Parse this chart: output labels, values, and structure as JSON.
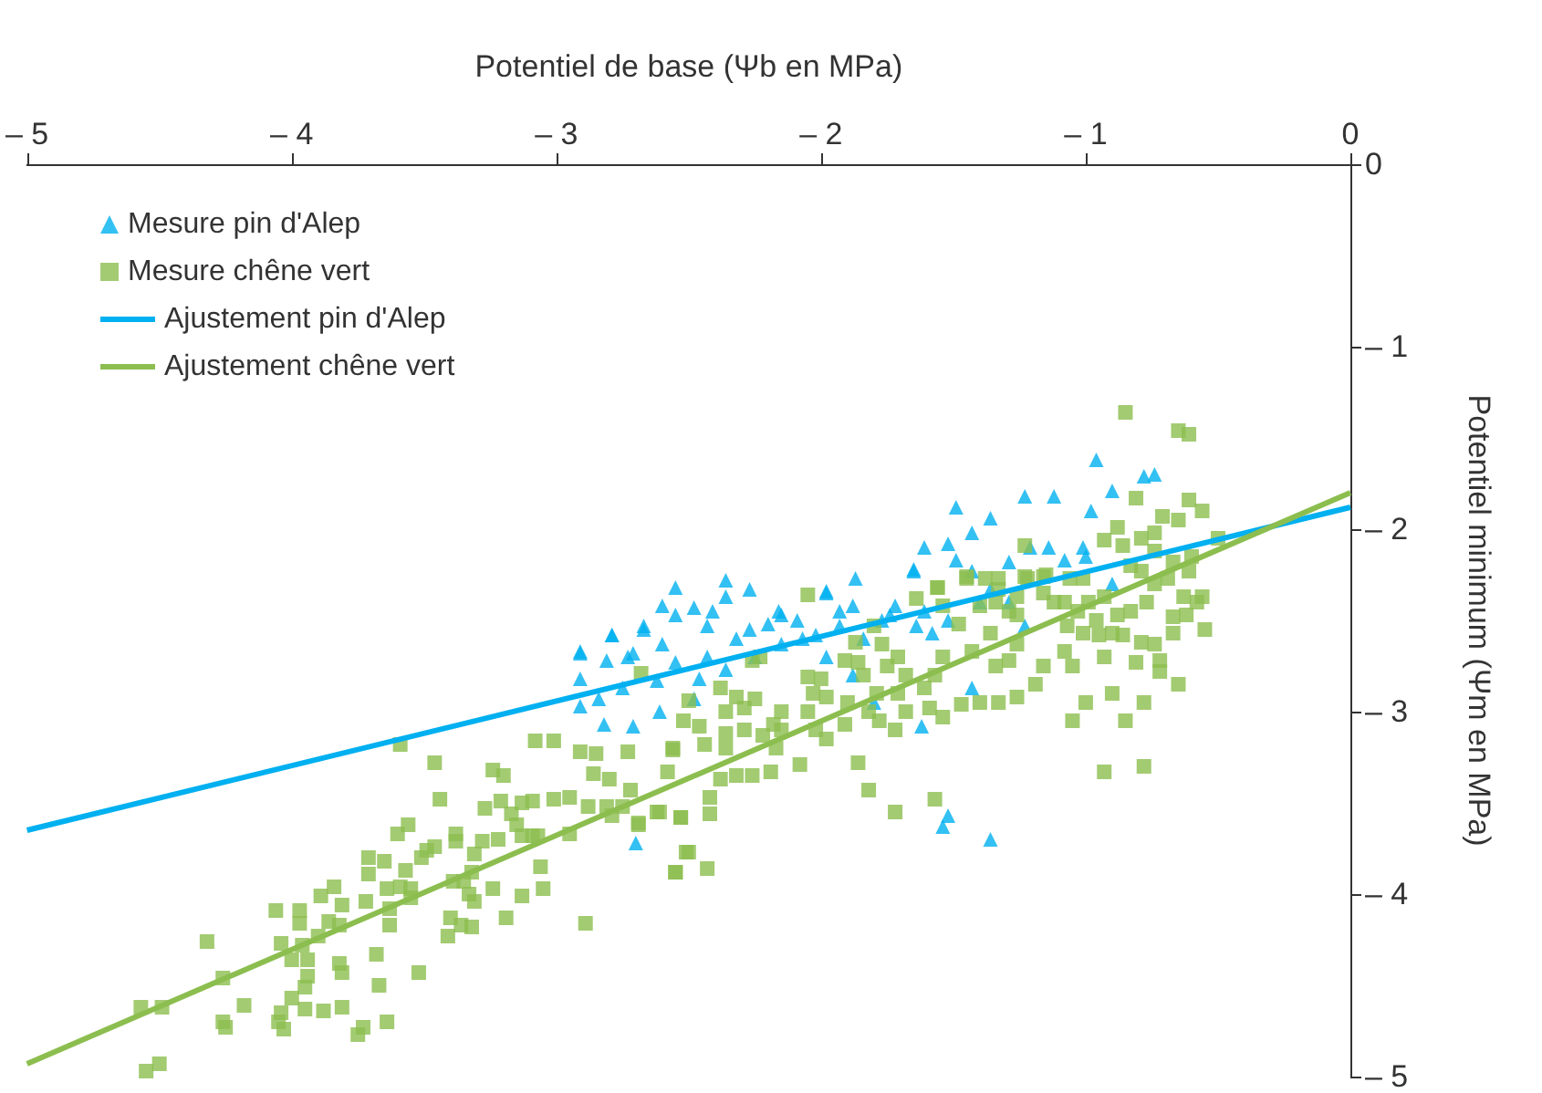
{
  "chart_data": {
    "type": "scatter",
    "xlabel": "Potentiel de base (Ψb en MPa)",
    "ylabel": "Potentiel minimum (Ψm en MPa)",
    "xlim": [
      -5,
      0
    ],
    "ylim": [
      -5,
      0
    ],
    "xticks": [
      {
        "value": -5,
        "label": "– 5"
      },
      {
        "value": -4,
        "label": "– 4"
      },
      {
        "value": -3,
        "label": "– 3"
      },
      {
        "value": -2,
        "label": "– 2"
      },
      {
        "value": -1,
        "label": "– 1"
      },
      0
    ],
    "yticks": [
      0,
      {
        "value": -1,
        "label": "– 1"
      },
      {
        "value": -2,
        "label": "– 2"
      },
      {
        "value": -3,
        "label": "– 3"
      },
      {
        "value": -4,
        "label": "– 4"
      },
      {
        "value": -5,
        "label": "– 5"
      }
    ],
    "grid": false,
    "legend": "top left",
    "series": [
      {
        "name": "Mesure pin d'Alep",
        "marker": "triangle",
        "color": "#00b0f0",
        "x": [
          -2.55,
          -2.27,
          -1.98,
          -2.91,
          -2.91,
          -2.81,
          -2.79,
          -2.67,
          -2.6,
          -2.48,
          -2.36,
          -2.43,
          -2.6,
          -2.71,
          -2.55,
          -2.43,
          -2.32,
          -2.2,
          -2.16,
          -2.09,
          -2.07,
          -2.15,
          -2.25,
          -2.36,
          -2.46,
          -2.62,
          -2.75,
          -2.84,
          -2.82,
          -2.71,
          -2.61,
          -2.48,
          -2.91,
          -1.88,
          -1.93,
          -1.84,
          -1.98,
          -1.88,
          -1.8,
          -1.74,
          -1.65,
          -1.64,
          -1.58,
          -1.49,
          -1.43,
          -1.29,
          -1.36,
          -1.23,
          -1.43,
          -1.62,
          -1.52,
          -1.54,
          -1.36,
          -2.7,
          -2.36,
          -1.98,
          -1.87,
          -1.65,
          -1.61,
          -1.52,
          -1.49,
          -1.43,
          -1.36,
          -1.23,
          -1.12,
          -1.21,
          -1.14,
          -1.08,
          -1.0,
          -0.98,
          -0.96,
          -0.9,
          -0.78,
          -0.74,
          -1.29,
          -1.4,
          -1.52,
          -1.61,
          -1.72,
          -1.77,
          -1.93,
          -2.02,
          -2.15,
          -2.27,
          -2.41,
          -2.55,
          -2.67,
          -2.79,
          -2.91,
          -2.73,
          -1.01,
          -0.9
        ],
        "values": [
          -2.32,
          -2.33,
          -2.34,
          -2.68,
          -2.82,
          -2.72,
          -2.58,
          -2.53,
          -2.42,
          -2.43,
          -2.37,
          -2.53,
          -2.63,
          -2.68,
          -2.73,
          -2.7,
          -2.6,
          -2.52,
          -2.45,
          -2.5,
          -2.6,
          -2.63,
          -2.7,
          -2.77,
          -2.82,
          -2.83,
          -2.87,
          -2.93,
          -3.07,
          -3.08,
          -3.0,
          -2.93,
          -2.97,
          -2.42,
          -2.53,
          -2.6,
          -2.7,
          -2.8,
          -2.95,
          -2.47,
          -2.23,
          -2.53,
          -2.57,
          -2.17,
          -2.23,
          -2.18,
          -2.33,
          -2.53,
          -2.87,
          -3.08,
          -3.57,
          -3.63,
          -3.7,
          -3.72,
          -2.28,
          -2.35,
          -2.27,
          -2.22,
          -2.1,
          -2.08,
          -1.88,
          -2.02,
          -1.94,
          -1.82,
          -1.82,
          -2.1,
          -2.1,
          -2.17,
          -2.15,
          -1.9,
          -1.62,
          -1.79,
          -1.71,
          -1.7,
          -2.4,
          -2.4,
          -2.5,
          -2.45,
          -2.42,
          -2.5,
          -2.45,
          -2.58,
          -2.47,
          -2.55,
          -2.45,
          -2.47,
          -2.55,
          -2.58,
          -2.67,
          -2.7,
          -2.1,
          -2.3
        ]
      },
      {
        "name": "Mesure chêne vert",
        "marker": "square",
        "color": "#8cbe4f",
        "x": [
          -4.57,
          -4.49,
          -4.55,
          -4.5,
          -4.32,
          -4.26,
          -4.26,
          -4.25,
          -4.18,
          -4.06,
          -3.97,
          -3.97,
          -4.04,
          -4.0,
          -4.05,
          -4.03,
          -4.04,
          -3.95,
          -3.88,
          -3.81,
          -3.96,
          -3.94,
          -3.9,
          -3.94,
          -3.95,
          -4.0,
          -3.89,
          -3.84,
          -3.81,
          -3.86,
          -3.82,
          -3.82,
          -3.81,
          -3.72,
          -3.71,
          -3.65,
          -3.71,
          -3.64,
          -3.68,
          -3.67,
          -3.75,
          -3.73,
          -3.64,
          -3.63,
          -3.63,
          -3.57,
          -3.59,
          -3.55,
          -3.55,
          -3.6,
          -3.56,
          -3.51,
          -3.49,
          -3.46,
          -3.52,
          -3.44,
          -3.46,
          -3.59,
          -3.38,
          -3.38,
          -3.39,
          -3.35,
          -3.32,
          -3.33,
          -3.31,
          -3.4,
          -3.41,
          -3.36,
          -3.32,
          -3.31,
          -3.28,
          -3.22,
          -3.24,
          -3.19,
          -3.13,
          -3.27,
          -3.21,
          -3.24,
          -3.2,
          -3.17,
          -3.15,
          -3.13,
          -3.09,
          -3.13,
          -3.09,
          -3.07,
          -3.08,
          -3.01,
          -3.06,
          -3.05,
          -3.01,
          -2.95,
          -2.95,
          -2.89,
          -2.91,
          -2.85,
          -2.86,
          -2.8,
          -2.73,
          -2.88,
          -2.81,
          -2.75,
          -2.79,
          -2.69,
          -2.62,
          -2.53,
          -2.55,
          -2.51,
          -2.58,
          -2.56,
          -2.72,
          -2.05,
          -2.68,
          -2.5,
          -2.38,
          -2.32,
          -2.36,
          -2.29,
          -2.25,
          -2.23,
          -2.26,
          -2.18,
          -2.15,
          -2.22,
          -2.29,
          -2.36,
          -2.46,
          -2.44,
          -2.56,
          -2.52,
          -2.36,
          -2.17,
          -2.15,
          -2.05,
          -2.05,
          -2.0,
          -2.03,
          -1.98,
          -2.02,
          -1.98,
          -1.91,
          -1.9,
          -1.91,
          -1.86,
          -1.84,
          -1.87,
          -1.8,
          -1.77,
          -1.75,
          -1.71,
          -1.68,
          -1.71,
          -1.79,
          -1.82,
          -1.78,
          -1.72,
          -1.68,
          -1.61,
          -1.59,
          -1.54,
          -1.57,
          -1.54,
          -1.64,
          -1.56,
          -1.54,
          -1.45,
          -1.48,
          -1.43,
          -1.4,
          -1.36,
          -1.34,
          -1.29,
          -1.26,
          -1.33,
          -1.23,
          -1.16,
          -1.26,
          -1.4,
          -1.47,
          -1.33,
          -1.26,
          -1.19,
          -1.16,
          -1.86,
          -1.82,
          -1.72,
          -1.57,
          -2.08,
          -2.19,
          -2.26,
          -2.32,
          -2.38,
          -2.42,
          -2.42,
          -2.53,
          -2.5,
          -2.43,
          -2.55,
          -2.69,
          -2.61,
          -0.85,
          -0.65,
          -0.61,
          -0.81,
          -0.61,
          -0.56,
          -0.5,
          -0.65,
          -0.71,
          -0.74,
          -0.88,
          -0.93,
          -0.86,
          -0.79,
          -0.74,
          -0.6,
          -0.67,
          -0.61,
          -0.69,
          -0.74,
          -0.79,
          -0.83,
          -0.63,
          -0.56,
          -0.62,
          -0.67,
          -0.77,
          -0.83,
          -0.88,
          -0.93,
          -0.99,
          -0.96,
          -1.03,
          -1.08,
          -1.01,
          -1.06,
          -0.67,
          -0.74,
          -0.79,
          -0.86,
          -0.9,
          -0.95,
          -1.01,
          -1.07,
          -0.93,
          -0.81,
          -0.72,
          -0.72,
          -1.05,
          -1.08,
          -1.12,
          -1.16,
          -1.22,
          -1.23,
          -1.15,
          -1.26,
          -1.29,
          -1.34,
          -1.38,
          -1.33,
          -1.45,
          -1.56,
          -1.05,
          -1.0,
          -0.9,
          -0.78,
          -0.85,
          -0.93,
          -0.78,
          -0.65,
          -0.58,
          -0.55
        ],
        "values": [
          -4.62,
          -4.62,
          -4.97,
          -4.93,
          -4.26,
          -4.46,
          -4.7,
          -4.73,
          -4.61,
          -4.09,
          -4.09,
          -4.16,
          -4.27,
          -4.36,
          -4.7,
          -4.74,
          -4.65,
          -4.63,
          -4.64,
          -4.62,
          -4.28,
          -4.36,
          -4.23,
          -4.45,
          -4.51,
          -4.57,
          -4.01,
          -3.96,
          -4.06,
          -4.15,
          -4.17,
          -4.38,
          -4.43,
          -4.04,
          -3.8,
          -3.82,
          -3.89,
          -3.97,
          -4.33,
          -4.5,
          -4.77,
          -4.73,
          -4.7,
          -4.08,
          -4.17,
          -3.87,
          -3.96,
          -3.97,
          -4.02,
          -3.67,
          -3.62,
          -3.8,
          -3.76,
          -3.74,
          -4.43,
          -3.48,
          -3.28,
          -3.18,
          -3.67,
          -3.71,
          -3.93,
          -3.93,
          -3.88,
          -4.0,
          -4.04,
          -4.13,
          -4.23,
          -4.17,
          -4.18,
          -3.78,
          -3.71,
          -3.7,
          -3.97,
          -4.13,
          -4.01,
          -3.53,
          -3.49,
          -3.32,
          -3.35,
          -3.56,
          -3.62,
          -3.5,
          -3.49,
          -3.68,
          -3.68,
          -3.68,
          -3.16,
          -3.16,
          -3.85,
          -3.97,
          -3.48,
          -3.47,
          -3.67,
          -4.16,
          -3.22,
          -3.23,
          -3.34,
          -3.37,
          -3.22,
          -3.52,
          -3.52,
          -3.52,
          -3.57,
          -3.61,
          -3.55,
          -3.58,
          -3.88,
          -3.77,
          -3.33,
          -3.21,
          -3.43,
          -2.36,
          -2.79,
          -2.94,
          -2.87,
          -2.92,
          -3.0,
          -2.98,
          -2.93,
          -2.7,
          -2.72,
          -3.07,
          -3.1,
          -3.13,
          -3.1,
          -3.2,
          -3.08,
          -3.18,
          -3.2,
          -3.05,
          -3.12,
          -3.2,
          -3.0,
          -3.0,
          -2.81,
          -2.82,
          -2.9,
          -2.92,
          -3.1,
          -3.15,
          -3.07,
          -2.95,
          -2.72,
          -2.73,
          -2.8,
          -2.62,
          -2.53,
          -2.63,
          -2.75,
          -2.7,
          -2.8,
          -2.9,
          -2.9,
          -3.0,
          -3.05,
          -3.1,
          -3.0,
          -2.87,
          -2.98,
          -3.03,
          -2.8,
          -2.7,
          -2.38,
          -2.32,
          -2.42,
          -2.26,
          -2.52,
          -2.67,
          -2.42,
          -2.57,
          -2.75,
          -2.72,
          -2.63,
          -2.33,
          -2.26,
          -2.26,
          -2.47,
          -2.95,
          -2.96,
          -2.95,
          -2.92,
          -2.85,
          -2.75,
          -3.28,
          -3.43,
          -3.55,
          -3.48,
          -3.29,
          -3.33,
          -3.35,
          -3.35,
          -3.37,
          -3.47,
          -3.56,
          -3.58,
          -3.77,
          -3.86,
          -3.88,
          -3.62,
          -3.55,
          -1.36,
          -1.46,
          -1.48,
          -1.83,
          -1.84,
          -1.9,
          -2.05,
          -1.95,
          -1.93,
          -2.02,
          -1.99,
          -2.06,
          -2.09,
          -2.05,
          -2.12,
          -2.15,
          -2.18,
          -2.23,
          -2.27,
          -2.3,
          -2.23,
          -2.2,
          -2.37,
          -2.37,
          -2.47,
          -2.48,
          -2.4,
          -2.45,
          -2.47,
          -2.37,
          -2.4,
          -2.5,
          -2.45,
          -2.4,
          -2.27,
          -2.27,
          -2.57,
          -2.63,
          -2.62,
          -2.58,
          -2.57,
          -2.58,
          -2.57,
          -2.53,
          -2.7,
          -2.73,
          -2.72,
          -2.78,
          -2.75,
          -2.67,
          -2.4,
          -2.35,
          -2.27,
          -2.09,
          -2.25,
          -2.37,
          -2.45,
          -2.4,
          -2.27,
          -2.27,
          -2.27,
          -2.32,
          -3.05,
          -2.95,
          -2.9,
          -2.95,
          -3.05,
          -3.33,
          -3.3,
          -2.85,
          -2.4,
          -2.55
        ]
      },
      {
        "name": "Ajustement pin d'Alep",
        "type": "line",
        "marker": "none",
        "color": "#00b0f0",
        "x": [
          -5,
          0
        ],
        "values": [
          -3.65,
          -1.88
        ]
      },
      {
        "name": "Ajustement chêne vert",
        "type": "line",
        "marker": "none",
        "color": "#8cbe4f",
        "x": [
          -5,
          0
        ],
        "values": [
          -4.93,
          -1.8
        ]
      }
    ]
  }
}
